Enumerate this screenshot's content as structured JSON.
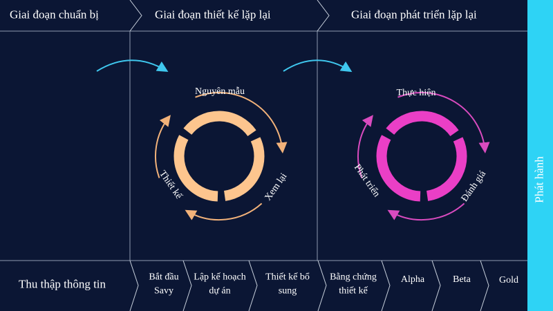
{
  "header": {
    "phases": [
      "Giai đoạn chuẩn bị",
      "Giai đoạn thiết kế lặp lại",
      "Giai đoạn phát triển lặp lại"
    ]
  },
  "release": "Phát hành",
  "design_cycle": {
    "labels": [
      "Nguyên mẫu",
      "Xem lại",
      "Thiết kế"
    ]
  },
  "development_cycle": {
    "labels": [
      "Thực hiện",
      "Đánh giá",
      "Phát triển"
    ]
  },
  "footer": {
    "steps": [
      "Thu thập thông tin",
      "Bắt đầu Savy",
      "Lập kế hoạch dự án",
      "Thiết kế bổ sung",
      "Bằng chứng thiết kế",
      "Alpha",
      "Beta",
      "Gold"
    ]
  }
}
